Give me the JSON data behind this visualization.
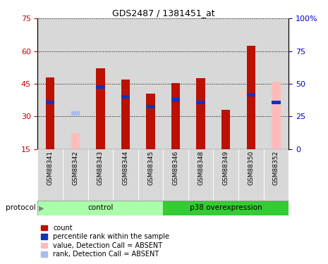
{
  "title": "GDS2487 / 1381451_at",
  "samples": [
    "GSM88341",
    "GSM88342",
    "GSM88343",
    "GSM88344",
    "GSM88345",
    "GSM88346",
    "GSM88348",
    "GSM88349",
    "GSM88350",
    "GSM88352"
  ],
  "red_bars": [
    48.0,
    null,
    52.0,
    47.0,
    40.5,
    45.5,
    47.5,
    33.0,
    62.5,
    null
  ],
  "blue_bars": [
    36.5,
    null,
    43.5,
    39.0,
    34.5,
    37.5,
    36.5,
    null,
    40.0,
    36.5
  ],
  "pink_bars": [
    null,
    22.5,
    null,
    null,
    null,
    null,
    null,
    null,
    null,
    46.0
  ],
  "lightblue_bars": [
    null,
    31.5,
    null,
    null,
    null,
    null,
    null,
    null,
    null,
    null
  ],
  "ylim_left": [
    15,
    75
  ],
  "ylim_right": [
    0,
    100
  ],
  "yticks_left": [
    15,
    30,
    45,
    60,
    75
  ],
  "yticks_right": [
    0,
    25,
    50,
    75,
    100
  ],
  "ylabel_left_color": "#cc0000",
  "ylabel_right_color": "#0000cc",
  "red_color": "#bb1100",
  "blue_color": "#1133bb",
  "pink_color": "#ffbbbb",
  "lightblue_color": "#aabbee",
  "sample_bg": "#d8d8d8",
  "control_bg": "#aaffaa",
  "p38_bg": "#33cc33",
  "legend_items": [
    "count",
    "percentile rank within the sample",
    "value, Detection Call = ABSENT",
    "rank, Detection Call = ABSENT"
  ],
  "legend_colors": [
    "#bb1100",
    "#1133bb",
    "#ffbbbb",
    "#aabbee"
  ],
  "n_control": 5,
  "n_p38": 5
}
